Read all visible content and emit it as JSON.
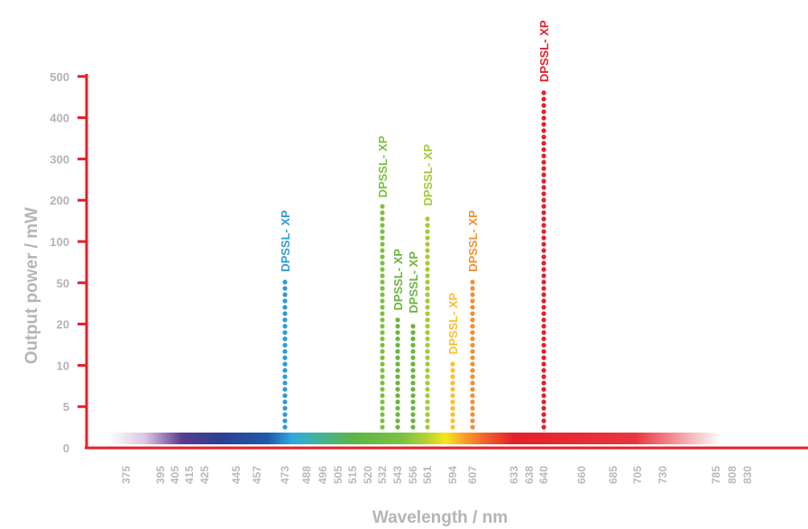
{
  "chart_data": {
    "type": "scatter",
    "xlabel": "Wavelength / nm",
    "ylabel": "Output power / mW",
    "y_ticks": [
      "0",
      "5",
      "10",
      "20",
      "50",
      "100",
      "200",
      "300",
      "400",
      "500"
    ],
    "x_ticks": [
      "375",
      "395",
      "405",
      "415",
      "425",
      "445",
      "457",
      "473",
      "488",
      "496",
      "505",
      "515",
      "520",
      "532",
      "543",
      "556",
      "561",
      "594",
      "607",
      "633",
      "638",
      "640",
      "660",
      "685",
      "705",
      "730",
      "785",
      "808",
      "830"
    ],
    "grid": false,
    "spectrum_bar": true,
    "colors": {
      "axis": "#e3202b",
      "473": "#2e9bd6",
      "532": "#7cc142",
      "543": "#6cb43f",
      "556": "#6cb43f",
      "561": "#a6c93a",
      "594": "#fbc02d",
      "607": "#f29131",
      "640": "#e3202b"
    },
    "series": [
      {
        "label": "DPSSL- XP",
        "x": 473,
        "y": 50
      },
      {
        "label": "DPSSL- XP",
        "x": 532,
        "y": 180
      },
      {
        "label": "DPSSL- XP",
        "x": 543,
        "y": 22
      },
      {
        "label": "DPSSL- XP",
        "x": 556,
        "y": 20
      },
      {
        "label": "DPSSL- XP",
        "x": 561,
        "y": 160
      },
      {
        "label": "DPSSL- XP",
        "x": 594,
        "y": 10
      },
      {
        "label": "DPSSL- XP",
        "x": 607,
        "y": 50
      },
      {
        "label": "DPSSL- XP",
        "x": 640,
        "y": 460
      }
    ]
  }
}
